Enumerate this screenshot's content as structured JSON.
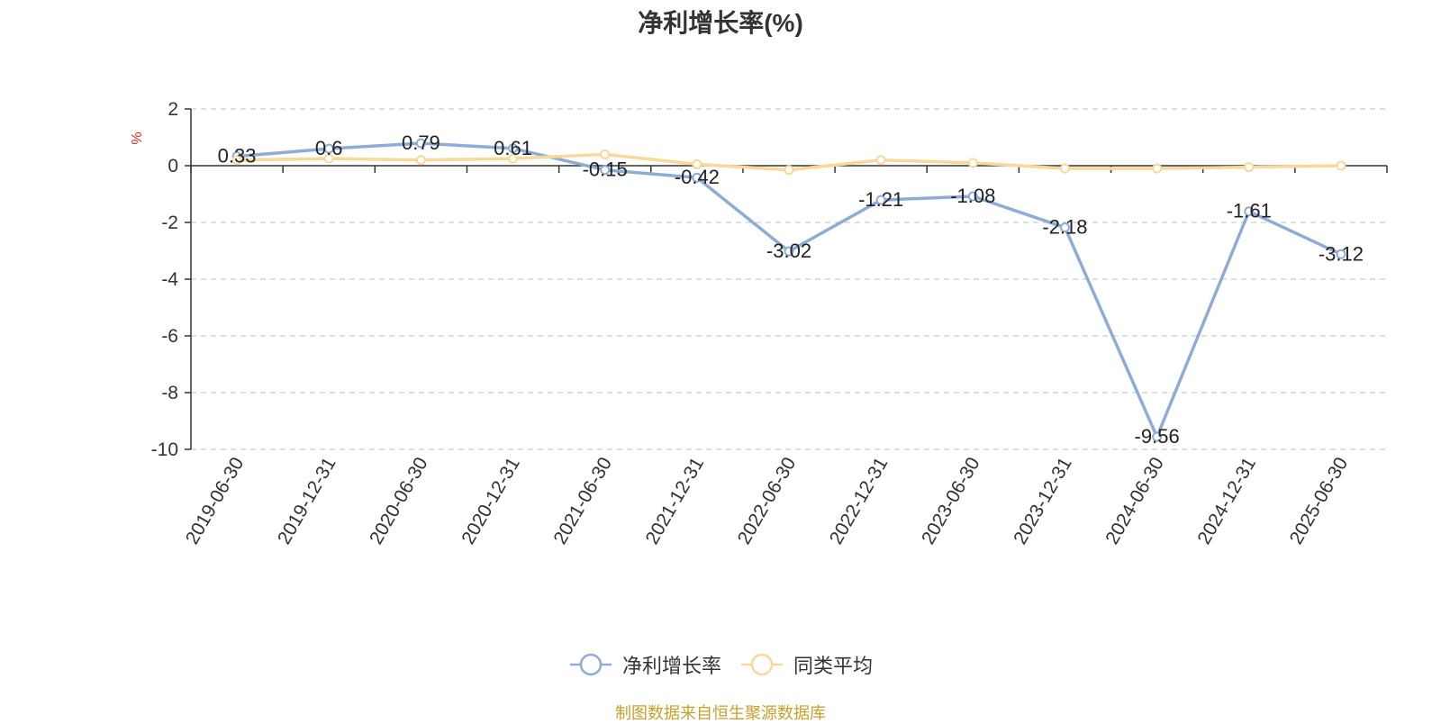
{
  "title": "净利增长率(%)",
  "source_note": "制图数据来自恒生聚源数据库",
  "chart_data": {
    "type": "line",
    "title": "净利增长率(%)",
    "xlabel": "",
    "ylabel": "%",
    "ylim": [
      -10,
      2
    ],
    "yticks": [
      2,
      0,
      -2,
      -4,
      -6,
      -8,
      -10
    ],
    "grid": true,
    "legend_position": "bottom",
    "categories": [
      "2019-06-30",
      "2019-12-31",
      "2020-06-30",
      "2020-12-31",
      "2021-06-30",
      "2021-12-31",
      "2022-06-30",
      "2022-12-31",
      "2023-06-30",
      "2023-12-31",
      "2024-06-30",
      "2024-12-31",
      "2025-06-30"
    ],
    "series": [
      {
        "name": "净利增长率",
        "color": "#8eacd8",
        "show_labels": true,
        "values": [
          0.33,
          0.6,
          0.79,
          0.61,
          -0.15,
          -0.42,
          -3.02,
          -1.21,
          -1.08,
          -2.18,
          -9.56,
          -1.61,
          -3.12
        ],
        "labels": [
          "0.33",
          "0.6",
          "0.79",
          "0.61",
          "-0.15",
          "-0.42",
          "-3.02",
          "-1.21",
          "-1.08",
          "-2.18",
          "-9.56",
          "-1.61",
          "-3.12"
        ]
      },
      {
        "name": "同类平均",
        "color": "#f9d899",
        "show_labels": false,
        "values": [
          0.2,
          0.25,
          0.2,
          0.25,
          0.4,
          0.05,
          -0.15,
          0.2,
          0.1,
          -0.1,
          -0.1,
          -0.05,
          0.0
        ]
      }
    ]
  }
}
